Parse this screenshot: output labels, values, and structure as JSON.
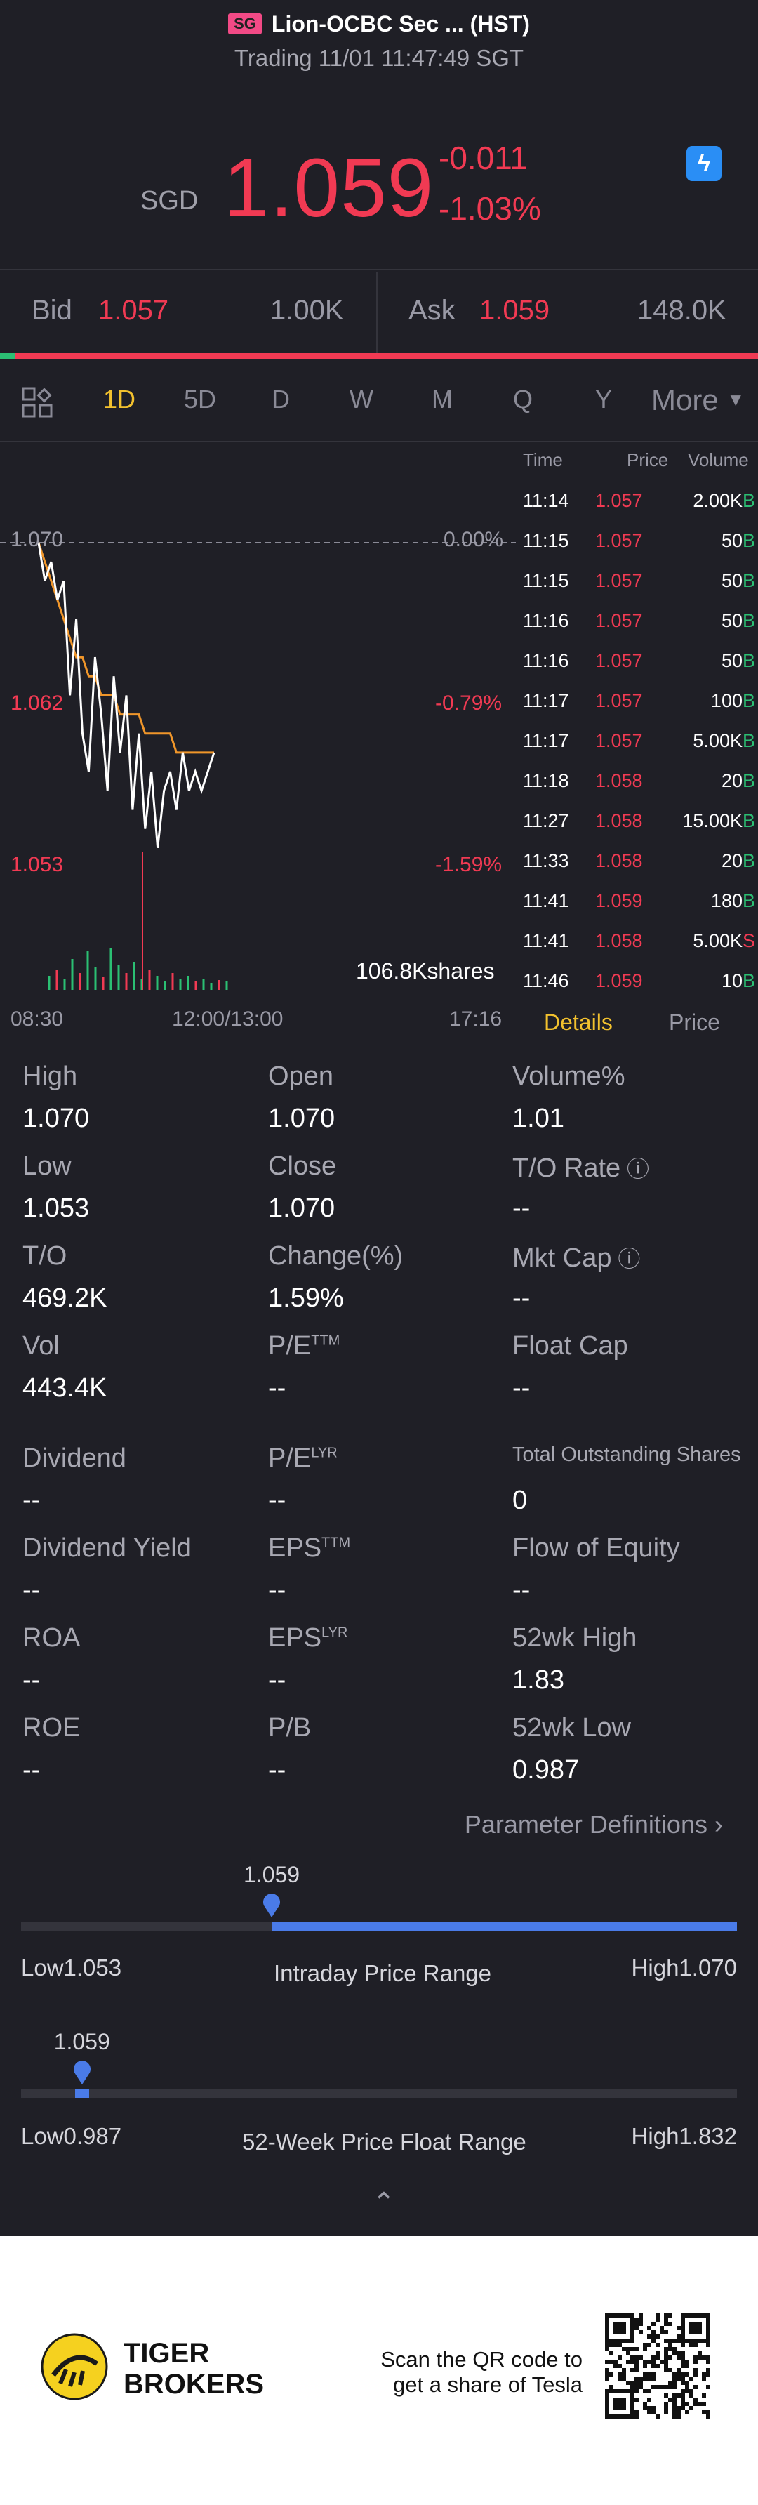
{
  "header": {
    "badge": "SG",
    "title": "Lion-OCBC Sec ... (HST)",
    "subtitle": "Trading 11/01 11:47:49 SGT"
  },
  "quote": {
    "currency": "SGD",
    "price": "1.059",
    "change": "-0.011",
    "change_pct": "-1.03%",
    "flash_icon": "lightning-icon"
  },
  "bidask": {
    "bid_label": "Bid",
    "bid_price": "1.057",
    "bid_size": "1.00K",
    "ask_label": "Ask",
    "ask_price": "1.059",
    "ask_size": "148.0K",
    "bid_ratio": 0.02
  },
  "tabs": [
    "1D",
    "5D",
    "D",
    "W",
    "M",
    "Q",
    "Y"
  ],
  "tabs_active": "1D",
  "more_label": "More",
  "chart": {
    "y_labels": [
      {
        "label": "1.070",
        "pct": "0.00%"
      },
      {
        "label": "1.062",
        "pct": "-0.79%"
      },
      {
        "label": "1.053",
        "pct": "-1.59%"
      }
    ],
    "volume_label": "106.8Kshares",
    "x_labels": [
      "08:30",
      "12:00/13:00",
      "17:16"
    ]
  },
  "chart_data": {
    "type": "line",
    "ylim": [
      1.053,
      1.07
    ],
    "series": [
      {
        "values": [
          1.07,
          1.068,
          1.069,
          1.067,
          1.068,
          1.062,
          1.066,
          1.06,
          1.058,
          1.064,
          1.061,
          1.057,
          1.063,
          1.059,
          1.062,
          1.056,
          1.06,
          1.055,
          1.058,
          1.054,
          1.057,
          1.058,
          1.056,
          1.059,
          1.057,
          1.058,
          1.057,
          1.058,
          1.059
        ]
      },
      {
        "values": [
          1.07,
          1.069,
          1.068,
          1.067,
          1.066,
          1.065,
          1.064,
          1.064,
          1.063,
          1.063,
          1.062,
          1.062,
          1.062,
          1.061,
          1.061,
          1.061,
          1.061,
          1.06,
          1.06,
          1.06,
          1.06,
          1.06,
          1.059,
          1.059,
          1.059,
          1.059,
          1.059,
          1.059,
          1.059
        ]
      }
    ]
  },
  "ticks": {
    "headers": [
      "Time",
      "Price",
      "Volume"
    ],
    "rows": [
      {
        "time": "11:14",
        "price": "1.057",
        "vol": "2.00K",
        "side": "B"
      },
      {
        "time": "11:15",
        "price": "1.057",
        "vol": "50",
        "side": "B"
      },
      {
        "time": "11:15",
        "price": "1.057",
        "vol": "50",
        "side": "B"
      },
      {
        "time": "11:16",
        "price": "1.057",
        "vol": "50",
        "side": "B"
      },
      {
        "time": "11:16",
        "price": "1.057",
        "vol": "50",
        "side": "B"
      },
      {
        "time": "11:17",
        "price": "1.057",
        "vol": "100",
        "side": "B"
      },
      {
        "time": "11:17",
        "price": "1.057",
        "vol": "5.00K",
        "side": "B"
      },
      {
        "time": "11:18",
        "price": "1.058",
        "vol": "20",
        "side": "B"
      },
      {
        "time": "11:27",
        "price": "1.058",
        "vol": "15.00K",
        "side": "B"
      },
      {
        "time": "11:33",
        "price": "1.058",
        "vol": "20",
        "side": "B"
      },
      {
        "time": "11:41",
        "price": "1.059",
        "vol": "180",
        "side": "B"
      },
      {
        "time": "11:41",
        "price": "1.058",
        "vol": "5.00K",
        "side": "S"
      },
      {
        "time": "11:46",
        "price": "1.059",
        "vol": "10",
        "side": "B"
      }
    ],
    "details_label": "Details",
    "price_label": "Price"
  },
  "stats": [
    [
      {
        "l": "High",
        "v": "1.070"
      },
      {
        "l": "Open",
        "v": "1.070"
      },
      {
        "l": "Volume%",
        "v": "1.01"
      }
    ],
    [
      {
        "l": "Low",
        "v": "1.053"
      },
      {
        "l": "Close",
        "v": "1.070"
      },
      {
        "l": "T/O Rate",
        "v": "--"
      }
    ],
    [
      {
        "l": "T/O",
        "v": "469.2K"
      },
      {
        "l": "Change(%)",
        "v": "1.59%"
      },
      {
        "l": "Mkt Cap",
        "v": "--"
      }
    ],
    [
      {
        "l": "Vol",
        "v": "443.4K"
      },
      {
        "l": "P/E",
        "v": "--"
      },
      {
        "l": "Float Cap",
        "v": "--"
      }
    ],
    [
      {
        "l": "Dividend",
        "v": "--"
      },
      {
        "l": "P/E",
        "v": "--"
      },
      {
        "l": "Total Outstanding Shares",
        "v": "0"
      }
    ],
    [
      {
        "l": "Dividend Yield",
        "v": "--"
      },
      {
        "l": "EPS",
        "v": "--"
      },
      {
        "l": "Flow of Equity",
        "v": "--"
      }
    ],
    [
      {
        "l": "ROA",
        "v": "--"
      },
      {
        "l": "EPS",
        "v": "--"
      },
      {
        "l": "52wk High",
        "v": "1.83"
      }
    ],
    [
      {
        "l": "ROE",
        "v": "--"
      },
      {
        "l": "P/B",
        "v": "--"
      },
      {
        "l": "52wk Low",
        "v": "0.987"
      }
    ]
  ],
  "sups": {
    "ttm": "TTM",
    "lyr": "LYR"
  },
  "param_label": "Parameter Definitions",
  "intraday": {
    "current": "1.059",
    "low": "Low1.053",
    "high": "High1.070",
    "caption": "Intraday Price Range",
    "position": 0.35
  },
  "week52": {
    "current": "1.059",
    "low": "Low0.987",
    "high": "High1.832",
    "caption": "52-Week Price Float Range",
    "position": 0.085
  },
  "footer": {
    "brand_line1": "TIGER",
    "brand_line2": "BROKERS",
    "scan_line1": "Scan the QR code to",
    "scan_line2": "get a share of Tesla"
  }
}
